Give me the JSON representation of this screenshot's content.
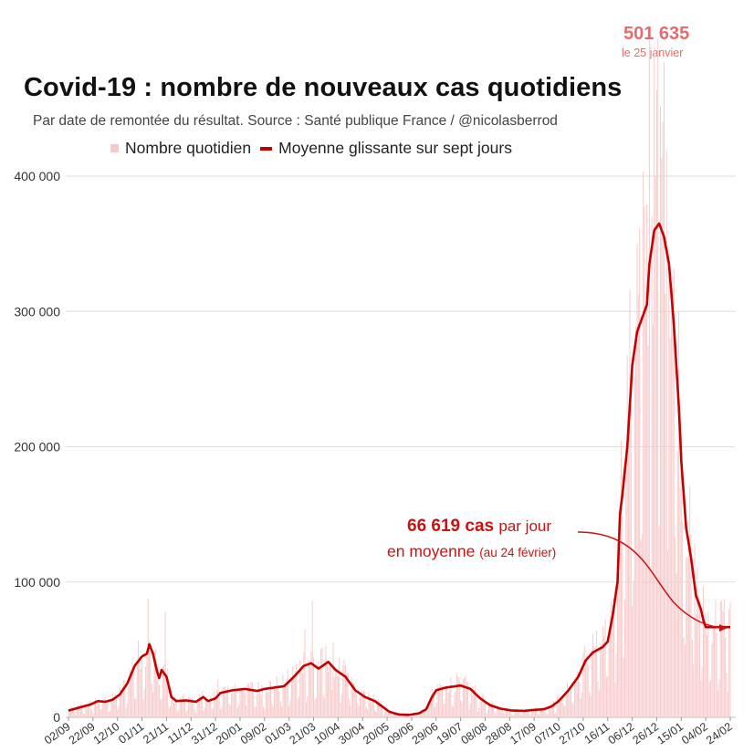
{
  "chart_data": {
    "type": "bar+line",
    "title": "Covid-19 : nombre de nouveaux cas quotidiens",
    "subtitle": "Par date de remontée du résultat. Source : Santé publique France / @nicolasberrod",
    "legend": {
      "bars": "Nombre quotidien",
      "line": "Moyenne glissante sur sept jours"
    },
    "ylim": [
      0,
      410000
    ],
    "y_ticks": [
      {
        "value": 0,
        "label": "0"
      },
      {
        "value": 100000,
        "label": "100 000"
      },
      {
        "value": 200000,
        "label": "200 000"
      },
      {
        "value": 300000,
        "label": "300 000"
      },
      {
        "value": 400000,
        "label": "400 000"
      }
    ],
    "x_tick_labels": [
      "02/09",
      "22/09",
      "12/10",
      "01/11",
      "21/11",
      "11/12",
      "31/12",
      "20/01",
      "09/02",
      "01/03",
      "21/03",
      "10/04",
      "30/04",
      "20/05",
      "09/06",
      "29/06",
      "19/07",
      "08/08",
      "28/08",
      "17/09",
      "07/10",
      "27/10",
      "16/11",
      "06/12",
      "26/12",
      "15/01",
      "04/02",
      "24/02"
    ],
    "x_day_count": 541,
    "moving_average_keypoints": [
      [
        0,
        5000
      ],
      [
        12,
        8000
      ],
      [
        18,
        9500
      ],
      [
        24,
        12000
      ],
      [
        30,
        11500
      ],
      [
        36,
        13000
      ],
      [
        42,
        17000
      ],
      [
        48,
        25000
      ],
      [
        54,
        38000
      ],
      [
        60,
        45000
      ],
      [
        64,
        47000
      ],
      [
        66,
        54000
      ],
      [
        69,
        47000
      ],
      [
        72,
        35000
      ],
      [
        74,
        29000
      ],
      [
        76,
        35000
      ],
      [
        80,
        30000
      ],
      [
        84,
        15000
      ],
      [
        88,
        12000
      ],
      [
        96,
        12500
      ],
      [
        104,
        11500
      ],
      [
        110,
        15000
      ],
      [
        114,
        12000
      ],
      [
        120,
        14000
      ],
      [
        124,
        18000
      ],
      [
        134,
        20000
      ],
      [
        144,
        21000
      ],
      [
        154,
        19500
      ],
      [
        160,
        21000
      ],
      [
        168,
        22000
      ],
      [
        176,
        23000
      ],
      [
        184,
        30000
      ],
      [
        192,
        38000
      ],
      [
        198,
        40000
      ],
      [
        204,
        36000
      ],
      [
        212,
        41000
      ],
      [
        218,
        35000
      ],
      [
        226,
        30000
      ],
      [
        234,
        20000
      ],
      [
        242,
        15000
      ],
      [
        250,
        12000
      ],
      [
        256,
        8000
      ],
      [
        262,
        4000
      ],
      [
        270,
        2000
      ],
      [
        278,
        1800
      ],
      [
        286,
        3000
      ],
      [
        292,
        6000
      ],
      [
        296,
        14000
      ],
      [
        300,
        20000
      ],
      [
        308,
        22000
      ],
      [
        320,
        23500
      ],
      [
        328,
        21000
      ],
      [
        336,
        14000
      ],
      [
        344,
        9000
      ],
      [
        352,
        6500
      ],
      [
        362,
        5000
      ],
      [
        372,
        4800
      ],
      [
        380,
        5500
      ],
      [
        388,
        6000
      ],
      [
        394,
        8000
      ],
      [
        400,
        12000
      ],
      [
        408,
        20000
      ],
      [
        416,
        30000
      ],
      [
        422,
        42000
      ],
      [
        428,
        48000
      ],
      [
        436,
        52000
      ],
      [
        440,
        56000
      ],
      [
        444,
        75000
      ],
      [
        448,
        100000
      ],
      [
        450,
        150000
      ],
      [
        452,
        165000
      ],
      [
        456,
        200000
      ],
      [
        460,
        260000
      ],
      [
        464,
        285000
      ],
      [
        468,
        295000
      ],
      [
        472,
        305000
      ],
      [
        474,
        335000
      ],
      [
        478,
        360000
      ],
      [
        482,
        365000
      ],
      [
        486,
        355000
      ],
      [
        490,
        335000
      ],
      [
        494,
        290000
      ],
      [
        498,
        230000
      ],
      [
        500,
        190000
      ],
      [
        504,
        140000
      ],
      [
        508,
        118000
      ],
      [
        512,
        90000
      ],
      [
        516,
        80000
      ],
      [
        518,
        72000
      ],
      [
        520,
        66619
      ]
    ],
    "daily_peak_hints": [
      [
        65,
        88000
      ],
      [
        79,
        78000
      ],
      [
        122,
        28000
      ],
      [
        146,
        25000
      ],
      [
        193,
        65000
      ],
      [
        199,
        86000
      ],
      [
        216,
        55000
      ],
      [
        474,
        500000
      ],
      [
        481,
        501635
      ],
      [
        485,
        440000
      ],
      [
        488,
        420000
      ]
    ],
    "annotations": {
      "peak_value": "501 635",
      "peak_date": "le 25 janvier",
      "latest_value": "66 619 cas",
      "latest_suffix": "par jour",
      "latest_line2": "en moyenne",
      "latest_date": "(au 24 février)"
    },
    "colors": {
      "bars": "#f7c9c9",
      "line": "#c40000",
      "annotation": "#cc1111",
      "peak": "#e46c6c"
    }
  }
}
